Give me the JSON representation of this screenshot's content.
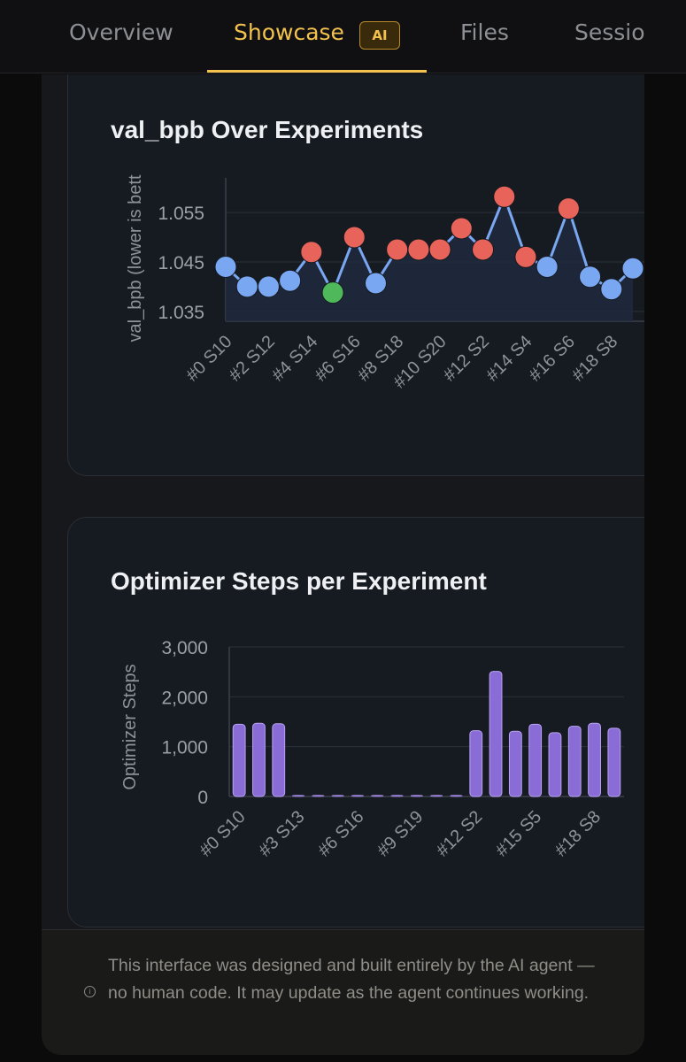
{
  "tabs": [
    {
      "label": "Overview",
      "active": false
    },
    {
      "label": "Showcase",
      "active": true,
      "badge": "AI"
    },
    {
      "label": "Files",
      "active": false
    },
    {
      "label": "Sessio",
      "active": false
    }
  ],
  "colors": {
    "accent": "#f2c14e",
    "point_neutral": "#7aa7f2",
    "point_worse": "#e8645a",
    "point_best": "#4fb85a",
    "bar": "#8a6cd6"
  },
  "chart_data": [
    {
      "type": "line",
      "title": "val_bpb Over Experiments",
      "ylabel": "val_bpb (lower is bett",
      "xlabel": "",
      "ylim": [
        1.033,
        1.062
      ],
      "yticks": [
        "1.055",
        "1.045",
        "1.035"
      ],
      "ytick_values": [
        1.055,
        1.045,
        1.035
      ],
      "tick_labels": [
        "#0 S10",
        "#2 S12",
        "#4 S14",
        "#6 S16",
        "#8 S18",
        "#10 S20",
        "#12 S2",
        "#14 S4",
        "#16 S6",
        "#18 S8"
      ],
      "values": [
        1.044,
        1.04,
        1.04,
        1.0412,
        1.047,
        1.0388,
        1.05,
        1.0407,
        1.0475,
        1.0475,
        1.0475,
        1.0518,
        1.0475,
        1.0582,
        1.046,
        1.044,
        1.0558,
        1.042,
        1.0395,
        1.0437
      ],
      "point_status": [
        "neutral",
        "neutral",
        "neutral",
        "neutral",
        "worse",
        "best",
        "worse",
        "neutral",
        "worse",
        "worse",
        "worse",
        "worse",
        "worse",
        "worse",
        "worse",
        "neutral",
        "worse",
        "neutral",
        "neutral",
        "neutral"
      ]
    },
    {
      "type": "bar",
      "title": "Optimizer Steps per Experiment",
      "ylabel": "Optimizer Steps",
      "xlabel": "",
      "ylim": [
        0,
        3000
      ],
      "yticks": [
        "3,000",
        "2,000",
        "1,000",
        "0"
      ],
      "ytick_values": [
        3000,
        2000,
        1000,
        0
      ],
      "tick_labels": [
        "#0 S10",
        "#3 S13",
        "#6 S16",
        "#9 S19",
        "#12 S2",
        "#15 S5",
        "#18 S8"
      ],
      "values": [
        1450,
        1470,
        1460,
        0,
        0,
        0,
        0,
        0,
        0,
        0,
        0,
        0,
        1320,
        2510,
        1310,
        1450,
        1280,
        1410,
        1470,
        1370
      ]
    }
  ],
  "footer": {
    "icon": "info-icon",
    "text": "This interface was designed and built entirely by the AI agent — no human code. It may update as the agent continues working."
  }
}
